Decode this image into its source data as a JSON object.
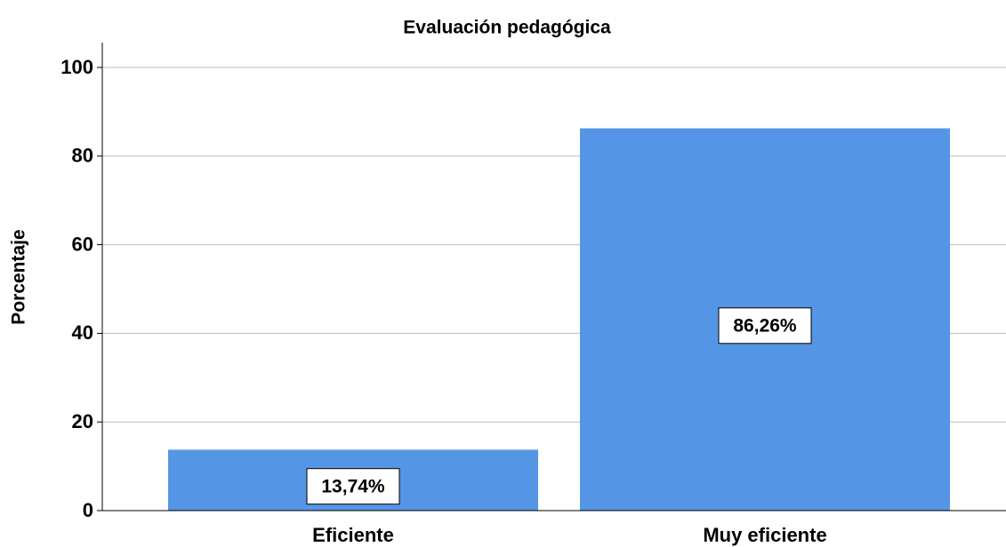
{
  "chart_data": {
    "type": "bar",
    "title": "Evaluación pedagógica",
    "y_label": "Porcentaje",
    "categories": [
      "Eficiente",
      "Muy eficiente"
    ],
    "values": [
      13.74,
      86.26
    ],
    "value_labels": [
      "13,74%",
      "86,26%"
    ],
    "color": "#5595e5",
    "ylim": [
      0,
      105
    ],
    "yticks": [
      0,
      20,
      40,
      60,
      80,
      100
    ],
    "grid": true
  }
}
